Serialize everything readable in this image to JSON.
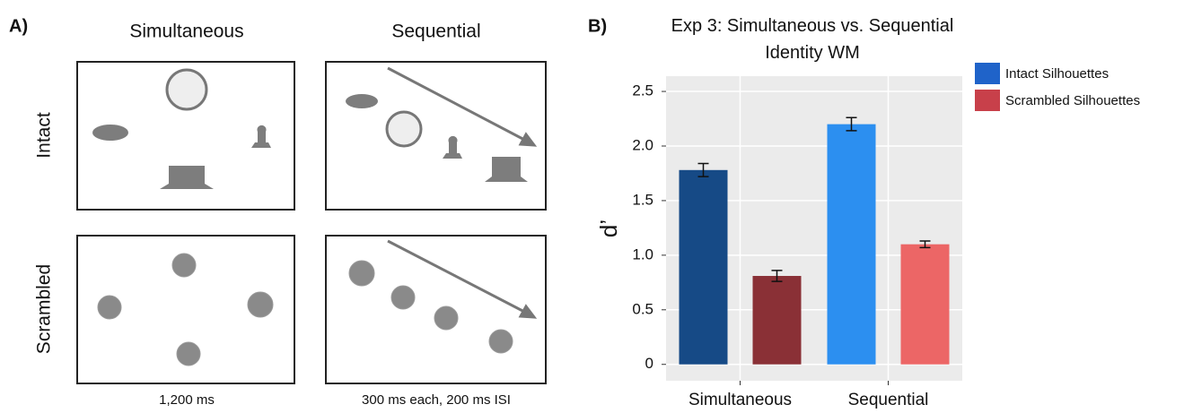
{
  "panel_a": {
    "label": "A)",
    "columns": [
      "Simultaneous",
      "Sequential"
    ],
    "rows": [
      "Intact",
      "Scrambled"
    ],
    "captions": [
      "1,200 ms",
      "300 ms each, 200 ms ISI"
    ]
  },
  "chart_data": {
    "type": "bar",
    "panel_label": "B)",
    "title": "Exp 3: Simultaneous vs. Sequential Identity WM",
    "ylabel": "d’",
    "categories": [
      "Simultaneous",
      "Sequential"
    ],
    "series": [
      {
        "name": "Intact Silhouettes",
        "color": "#1f63c9",
        "bar_colors": [
          "#164a86",
          "#2c8ff0"
        ],
        "values": [
          1.78,
          2.2
        ],
        "errors": [
          0.06,
          0.06
        ]
      },
      {
        "name": "Scrambled Silhouettes",
        "color": "#c8404a",
        "bar_colors": [
          "#8a3036",
          "#ec6666"
        ],
        "values": [
          0.81,
          1.1
        ],
        "errors": [
          0.05,
          0.03
        ]
      }
    ],
    "ylim": [
      -0.15,
      2.64
    ],
    "yticks": [
      0,
      0.5,
      {
        "value": 1,
        "label": "1.0"
      },
      1.5,
      {
        "value": 2,
        "label": "2.0"
      },
      2.5
    ],
    "grid": true,
    "legend": "right"
  }
}
